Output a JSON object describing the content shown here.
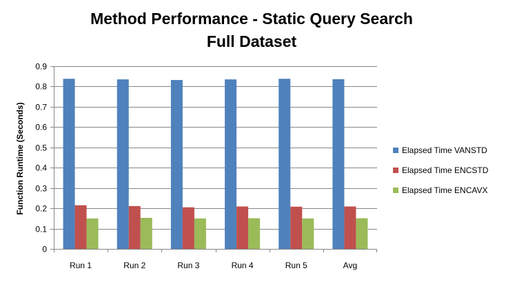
{
  "chart_data": {
    "type": "bar",
    "title": "Method Performance - Static Query Search",
    "subtitle": "Full Dataset",
    "xlabel": "",
    "ylabel": "Function Runtime (Seconds)",
    "ylim": [
      0,
      0.9
    ],
    "ytick_step": 0.1,
    "grid": true,
    "legend_position": "right",
    "categories": [
      "Run 1",
      "Run 2",
      "Run 3",
      "Run 4",
      "Run 5",
      "Avg"
    ],
    "series": [
      {
        "name": "Elapsed Time  VANSTD",
        "color": "#4F81BD",
        "values": [
          0.838,
          0.835,
          0.832,
          0.835,
          0.838,
          0.836
        ]
      },
      {
        "name": "Elapsed Time  ENCSTD",
        "color": "#C0504D",
        "values": [
          0.215,
          0.211,
          0.205,
          0.209,
          0.208,
          0.209
        ]
      },
      {
        "name": "Elapsed Time  ENCAVX",
        "color": "#9BBB59",
        "values": [
          0.15,
          0.153,
          0.15,
          0.151,
          0.15,
          0.151
        ]
      }
    ]
  }
}
